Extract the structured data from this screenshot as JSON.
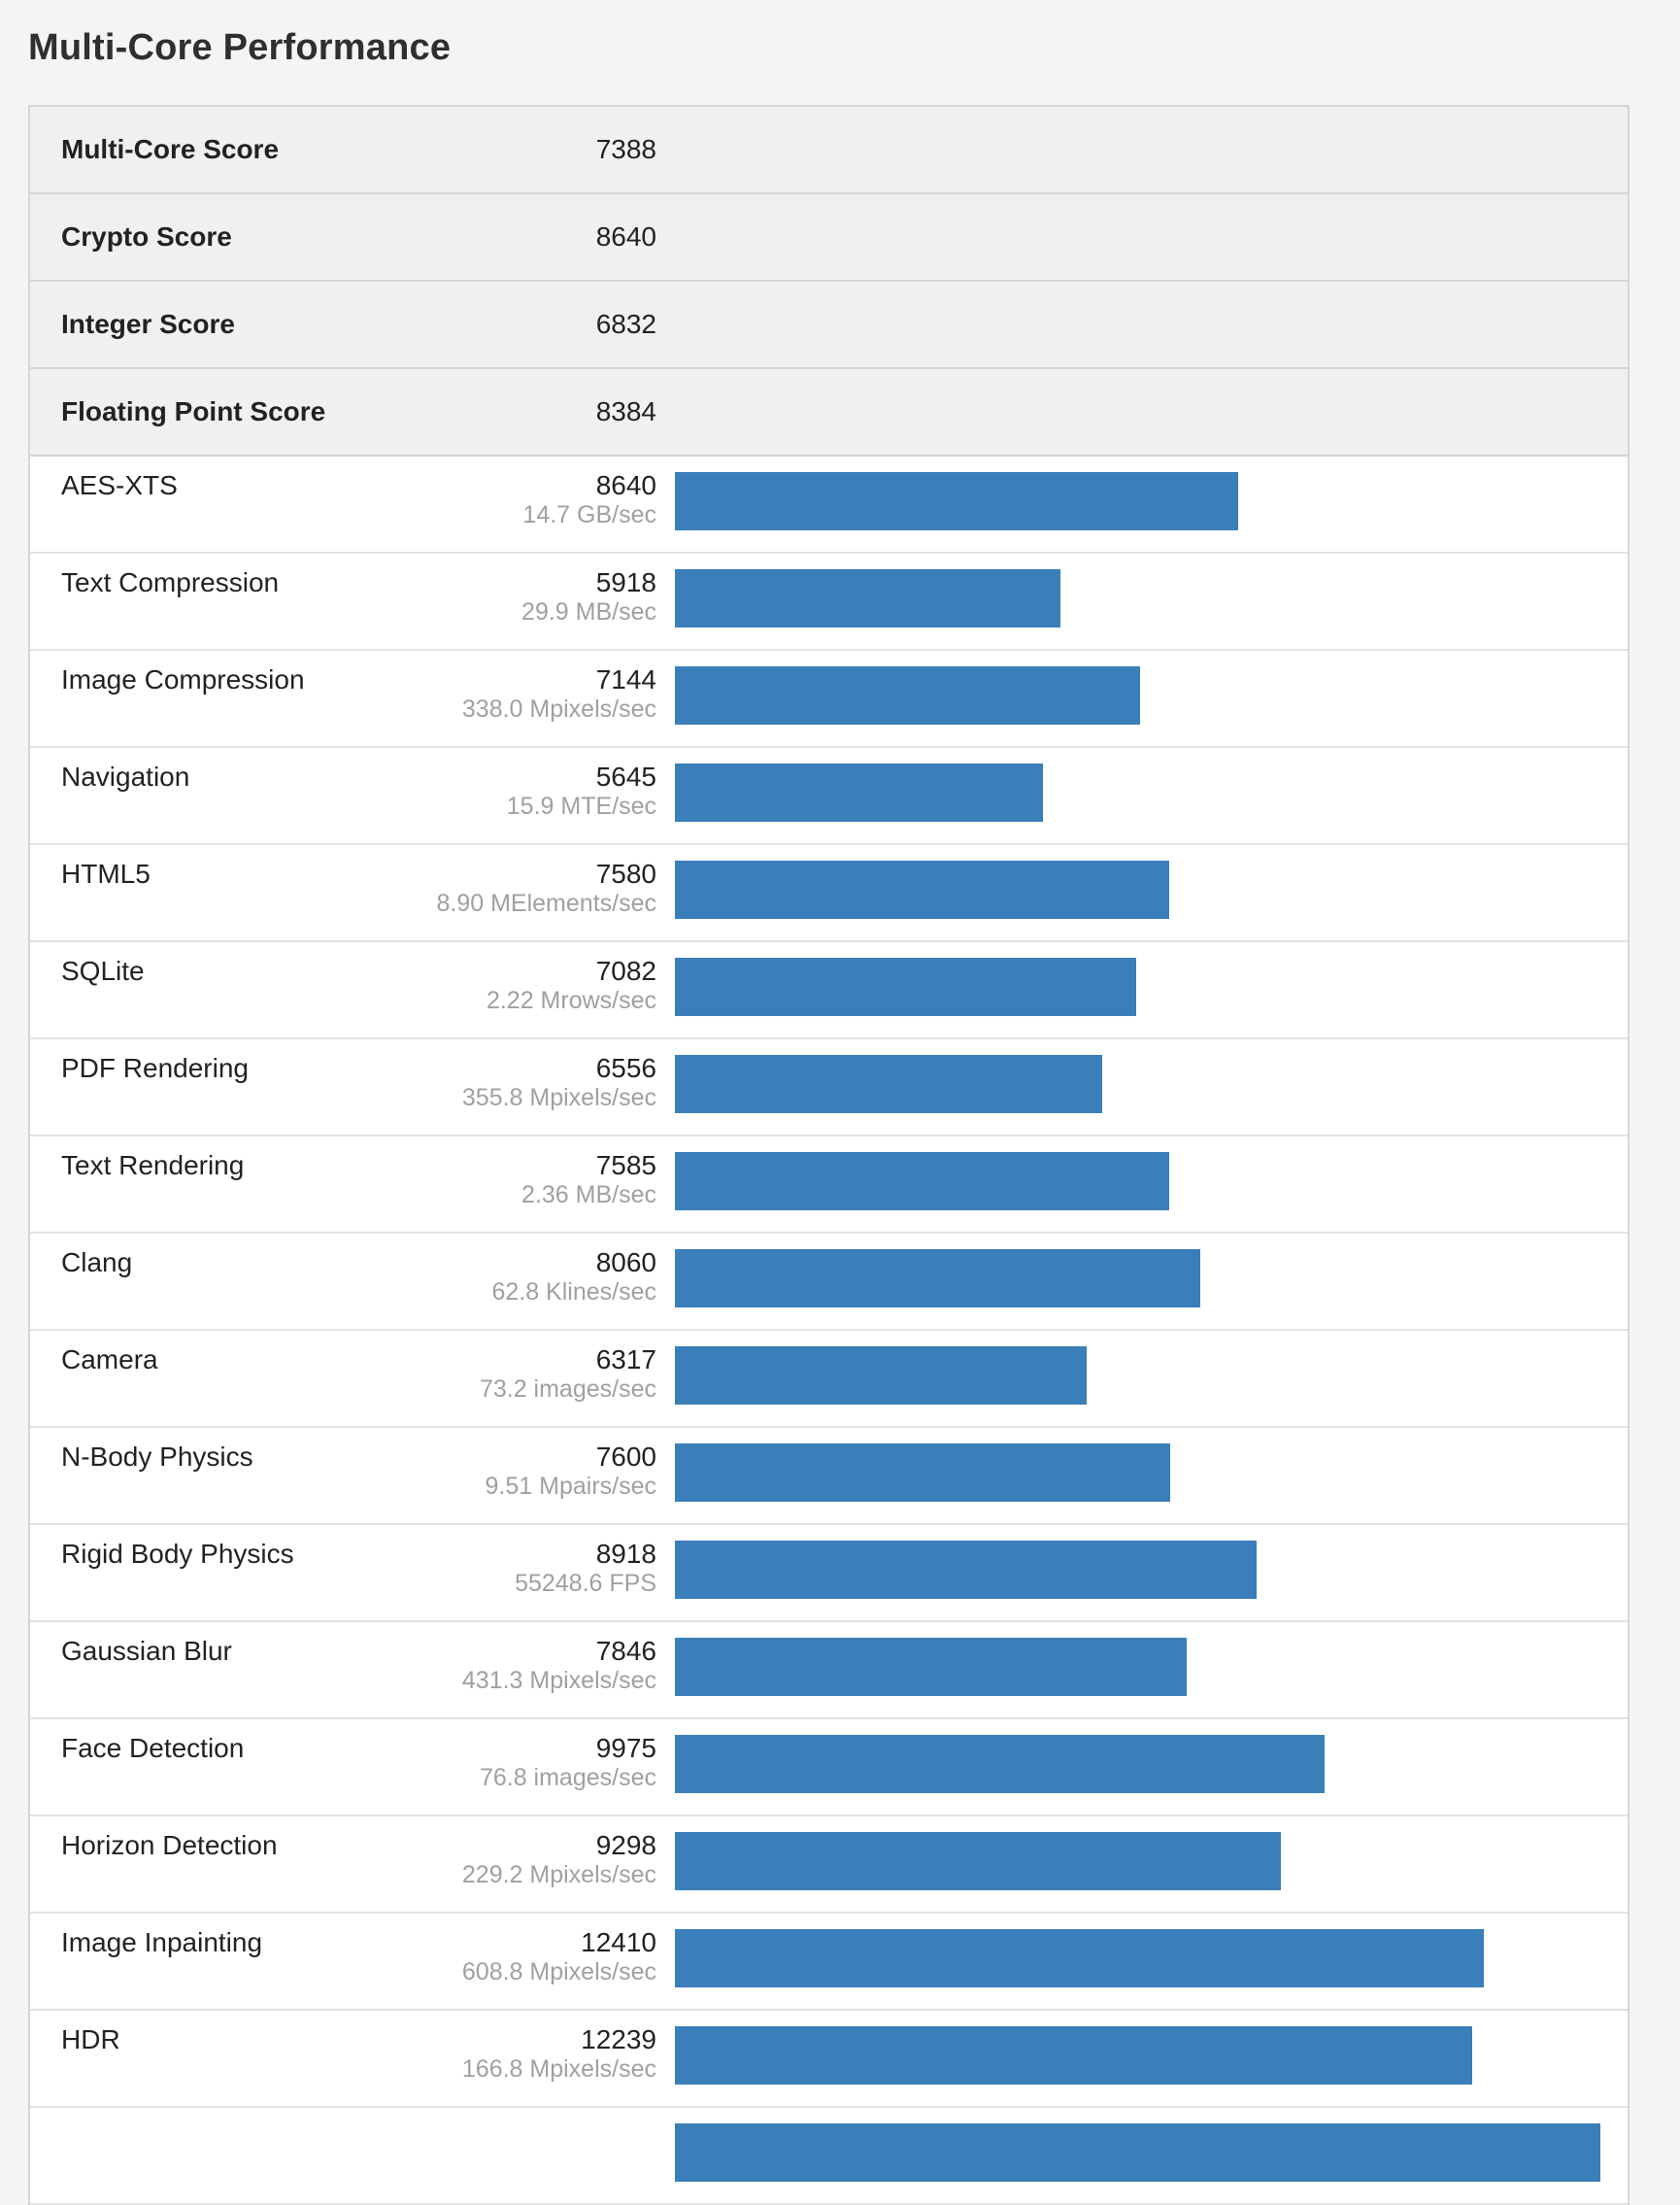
{
  "page_title": "Multi-Core Performance",
  "colors": {
    "bar": "#3a7eba",
    "summary_background": "#f0f0f0",
    "unit_text": "#a0a0a0"
  },
  "summary": [
    {
      "label": "Multi-Core Score",
      "value": "7388"
    },
    {
      "label": "Crypto Score",
      "value": "8640"
    },
    {
      "label": "Integer Score",
      "value": "6832"
    },
    {
      "label": "Floating Point Score",
      "value": "8384"
    }
  ],
  "benchmarks": [
    {
      "label": "AES-XTS",
      "score": "8640",
      "unit": "14.7 GB/sec"
    },
    {
      "label": "Text Compression",
      "score": "5918",
      "unit": "29.9 MB/sec"
    },
    {
      "label": "Image Compression",
      "score": "7144",
      "unit": "338.0 Mpixels/sec"
    },
    {
      "label": "Navigation",
      "score": "5645",
      "unit": "15.9 MTE/sec"
    },
    {
      "label": "HTML5",
      "score": "7580",
      "unit": "8.90 MElements/sec"
    },
    {
      "label": "SQLite",
      "score": "7082",
      "unit": "2.22 Mrows/sec"
    },
    {
      "label": "PDF Rendering",
      "score": "6556",
      "unit": "355.8 Mpixels/sec"
    },
    {
      "label": "Text Rendering",
      "score": "7585",
      "unit": "2.36 MB/sec"
    },
    {
      "label": "Clang",
      "score": "8060",
      "unit": "62.8 Klines/sec"
    },
    {
      "label": "Camera",
      "score": "6317",
      "unit": "73.2 images/sec"
    },
    {
      "label": "N-Body Physics",
      "score": "7600",
      "unit": "9.51 Mpairs/sec"
    },
    {
      "label": "Rigid Body Physics",
      "score": "8918",
      "unit": "55248.6 FPS"
    },
    {
      "label": "Gaussian Blur",
      "score": "7846",
      "unit": "431.3 Mpixels/sec"
    },
    {
      "label": "Face Detection",
      "score": "9975",
      "unit": "76.8 images/sec"
    },
    {
      "label": "Horizon Detection",
      "score": "9298",
      "unit": "229.2 Mpixels/sec"
    },
    {
      "label": "Image Inpainting",
      "score": "12410",
      "unit": "608.8 Mpixels/sec"
    },
    {
      "label": "HDR",
      "score": "12239",
      "unit": "166.8 Mpixels/sec"
    },
    {
      "label": "",
      "score": "",
      "unit": "",
      "bar_fraction": 0.998
    }
  ],
  "bar_scale_max": 14230
}
